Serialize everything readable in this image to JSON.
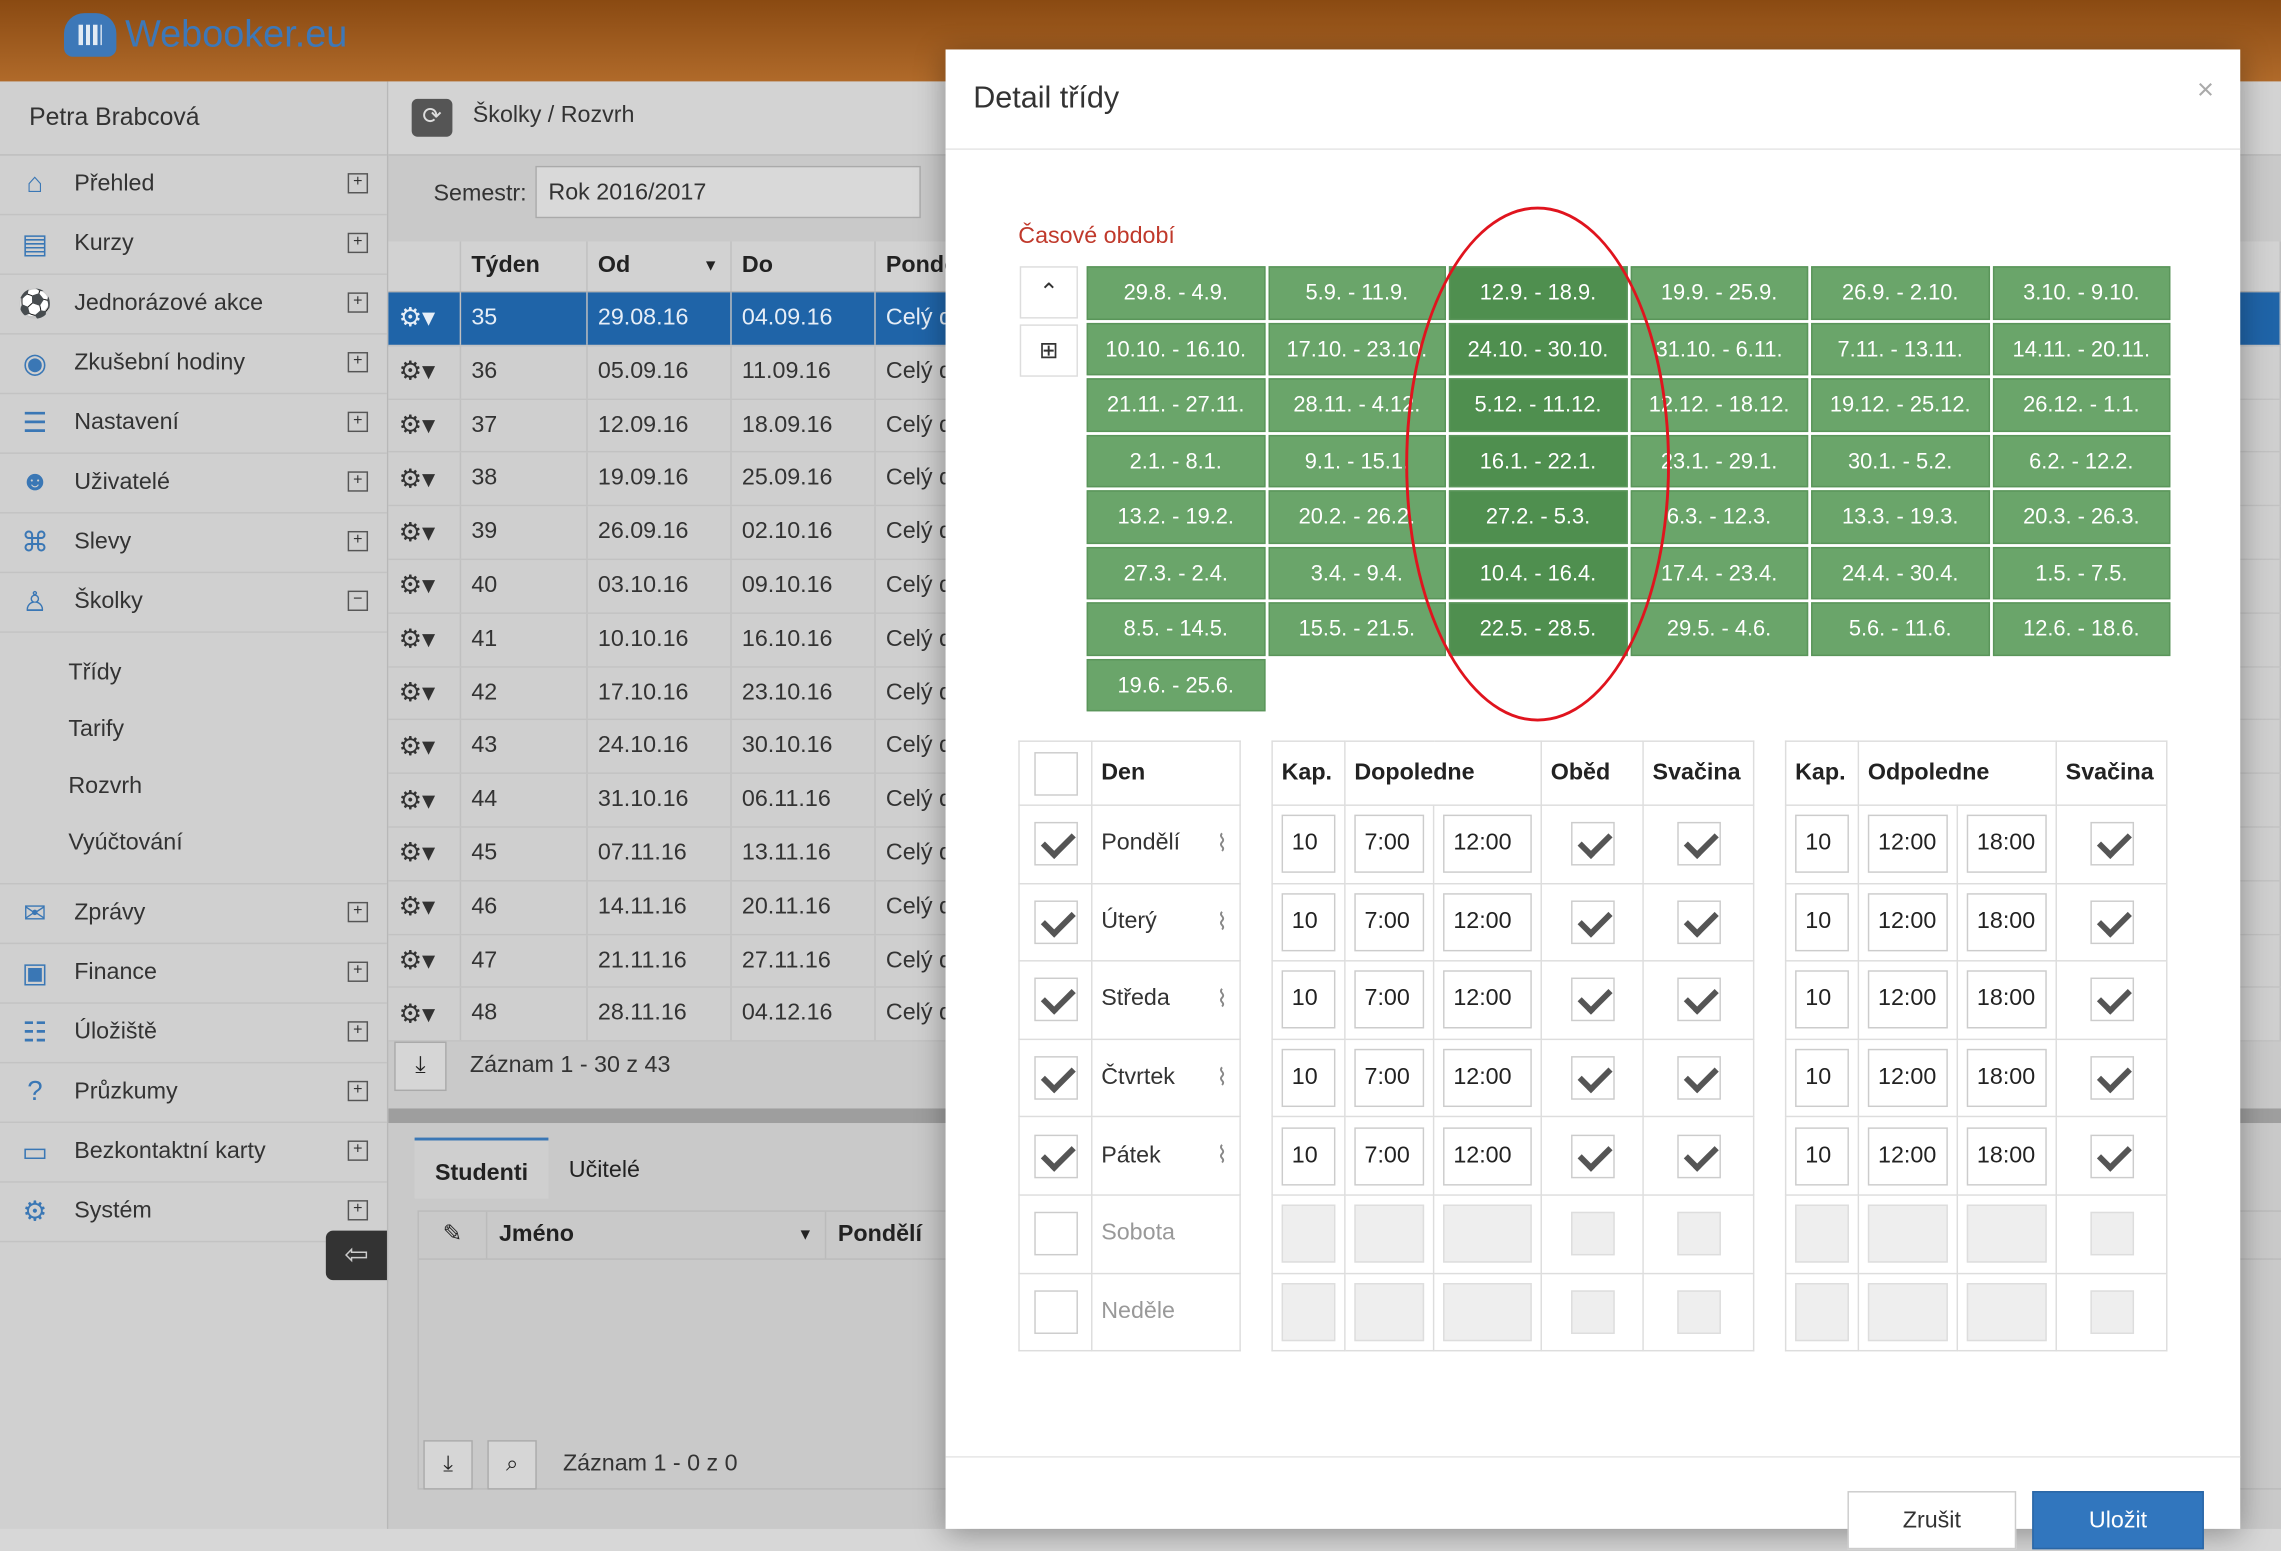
{
  "app": {
    "brand": "Webooker.eu"
  },
  "sidebar": {
    "user": "Petra Brabcová",
    "items": [
      {
        "label": "Přehled",
        "icon": "home-icon",
        "glyph": "⌂",
        "exp": "+"
      },
      {
        "label": "Kurzy",
        "icon": "book-icon",
        "glyph": "▤",
        "exp": "+"
      },
      {
        "label": "Jednorázové akce",
        "icon": "soccer-ball-icon",
        "glyph": "⚽",
        "exp": "+"
      },
      {
        "label": "Zkušební hodiny",
        "icon": "eye-icon",
        "glyph": "◉",
        "exp": "+"
      },
      {
        "label": "Nastavení",
        "icon": "sliders-icon",
        "glyph": "☰",
        "exp": "+"
      },
      {
        "label": "Uživatelé",
        "icon": "users-icon",
        "glyph": "☻",
        "exp": "+"
      },
      {
        "label": "Slevy",
        "icon": "gift-icon",
        "glyph": "⌘",
        "exp": "+"
      },
      {
        "label": "Školky",
        "icon": "child-icon",
        "glyph": "♙",
        "exp": "−"
      }
    ],
    "subitems": [
      "Třídy",
      "Tarify",
      "Rozvrh",
      "Vyúčtování"
    ],
    "items2": [
      {
        "label": "Zprávy",
        "icon": "envelope-icon",
        "glyph": "✉",
        "exp": "+"
      },
      {
        "label": "Finance",
        "icon": "money-icon",
        "glyph": "▣",
        "exp": "+"
      },
      {
        "label": "Úložiště",
        "icon": "database-icon",
        "glyph": "☷",
        "exp": "+"
      },
      {
        "label": "Průzkumy",
        "icon": "question-icon",
        "glyph": "?",
        "exp": "+"
      },
      {
        "label": "Bezkontaktní karty",
        "icon": "card-icon",
        "glyph": "▭",
        "exp": "+"
      },
      {
        "label": "Systém",
        "icon": "gears-icon",
        "glyph": "⚙",
        "exp": "+"
      }
    ]
  },
  "main": {
    "breadcrumb": "Školky / Rozvrh",
    "semestr_label": "Semestr:",
    "semestr_value": "Rok 2016/2017",
    "columns": [
      "Týden",
      "Od",
      "Do",
      "Pondě"
    ],
    "rows": [
      {
        "week": "35",
        "from": "29.08.16",
        "to": "04.09.16",
        "mon": "Celý d"
      },
      {
        "week": "36",
        "from": "05.09.16",
        "to": "11.09.16",
        "mon": "Celý d"
      },
      {
        "week": "37",
        "from": "12.09.16",
        "to": "18.09.16",
        "mon": "Celý d"
      },
      {
        "week": "38",
        "from": "19.09.16",
        "to": "25.09.16",
        "mon": "Celý d"
      },
      {
        "week": "39",
        "from": "26.09.16",
        "to": "02.10.16",
        "mon": "Celý d"
      },
      {
        "week": "40",
        "from": "03.10.16",
        "to": "09.10.16",
        "mon": "Celý d"
      },
      {
        "week": "41",
        "from": "10.10.16",
        "to": "16.10.16",
        "mon": "Celý d"
      },
      {
        "week": "42",
        "from": "17.10.16",
        "to": "23.10.16",
        "mon": "Celý d"
      },
      {
        "week": "43",
        "from": "24.10.16",
        "to": "30.10.16",
        "mon": "Celý d"
      },
      {
        "week": "44",
        "from": "31.10.16",
        "to": "06.11.16",
        "mon": "Celý d"
      },
      {
        "week": "45",
        "from": "07.11.16",
        "to": "13.11.16",
        "mon": "Celý d"
      },
      {
        "week": "46",
        "from": "14.11.16",
        "to": "20.11.16",
        "mon": "Celý d"
      },
      {
        "week": "47",
        "from": "21.11.16",
        "to": "27.11.16",
        "mon": "Celý d"
      },
      {
        "week": "48",
        "from": "28.11.16",
        "to": "04.12.16",
        "mon": "Celý d"
      }
    ],
    "pager_text": "Záznam 1 - 30 z 43",
    "tabs": [
      "Studenti",
      "Učitelé"
    ],
    "student_columns": [
      "Jméno",
      "Pondělí"
    ],
    "student_pager": "Záznam 1 - 0 z 0"
  },
  "modal": {
    "title": "Detail třídy",
    "close": "×",
    "period_label": "Časové období",
    "weeks": [
      "29.8. - 4.9.",
      "5.9. - 11.9.",
      "12.9. - 18.9.",
      "19.9. - 25.9.",
      "26.9. - 2.10.",
      "3.10. - 9.10.",
      "10.10. - 16.10.",
      "17.10. - 23.10.",
      "24.10. - 30.10.",
      "31.10. - 6.11.",
      "7.11. - 13.11.",
      "14.11. - 20.11.",
      "21.11. - 27.11.",
      "28.11. - 4.12.",
      "5.12. - 11.12.",
      "12.12. - 18.12.",
      "19.12. - 25.12.",
      "26.12. - 1.1.",
      "2.1. - 8.1.",
      "9.1. - 15.1.",
      "16.1. - 22.1.",
      "23.1. - 29.1.",
      "30.1. - 5.2.",
      "6.2. - 12.2.",
      "13.2. - 19.2.",
      "20.2. - 26.2.",
      "27.2. - 5.3.",
      "6.3. - 12.3.",
      "13.3. - 19.3.",
      "20.3. - 26.3.",
      "27.3. - 2.4.",
      "3.4. - 9.4.",
      "10.4. - 16.4.",
      "17.4. - 23.4.",
      "24.4. - 30.4.",
      "1.5. - 7.5.",
      "8.5. - 14.5.",
      "15.5. - 21.5.",
      "22.5. - 28.5.",
      "29.5. - 4.6.",
      "5.6. - 11.6.",
      "12.6. - 18.6.",
      "19.6. - 25.6."
    ],
    "day_header": "Den",
    "am_headers": [
      "Kap.",
      "Dopoledne",
      "Oběd",
      "Svačina"
    ],
    "pm_headers": [
      "Kap.",
      "Odpoledne",
      "Svačina"
    ],
    "days": [
      {
        "name": "Pondělí",
        "on": true,
        "am": [
          "10",
          "7:00",
          "12:00"
        ],
        "pm": [
          "10",
          "12:00",
          "18:00"
        ]
      },
      {
        "name": "Úterý",
        "on": true,
        "am": [
          "10",
          "7:00",
          "12:00"
        ],
        "pm": [
          "10",
          "12:00",
          "18:00"
        ]
      },
      {
        "name": "Středa",
        "on": true,
        "am": [
          "10",
          "7:00",
          "12:00"
        ],
        "pm": [
          "10",
          "12:00",
          "18:00"
        ]
      },
      {
        "name": "Čtvrtek",
        "on": true,
        "am": [
          "10",
          "7:00",
          "12:00"
        ],
        "pm": [
          "10",
          "12:00",
          "18:00"
        ]
      },
      {
        "name": "Pátek",
        "on": true,
        "am": [
          "10",
          "7:00",
          "12:00"
        ],
        "pm": [
          "10",
          "12:00",
          "18:00"
        ]
      },
      {
        "name": "Sobota",
        "on": false,
        "am": [
          "",
          "",
          ""
        ],
        "pm": [
          "",
          "",
          ""
        ]
      },
      {
        "name": "Neděle",
        "on": false,
        "am": [
          "",
          "",
          ""
        ],
        "pm": [
          "",
          "",
          ""
        ]
      }
    ],
    "cancel": "Zrušit",
    "save": "Uložit"
  }
}
